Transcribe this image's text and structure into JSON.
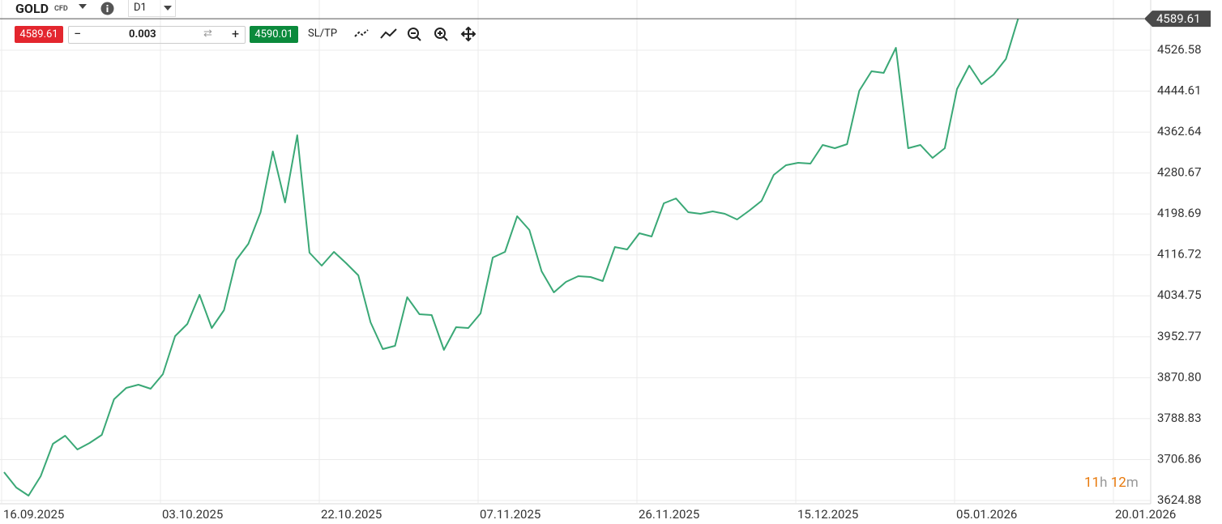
{
  "toolbar": {
    "symbol": "GOLD",
    "symbol_type": "CFD",
    "timeframe": "D1",
    "sell_price": "4589.61",
    "volume": "0.003",
    "buy_price": "4590.01",
    "sltp": "SL/TP"
  },
  "countdown": {
    "hours": "11",
    "hours_unit": "h",
    "minutes": "12",
    "minutes_unit": "m"
  },
  "chart_data": {
    "type": "line",
    "color": "#3aa876",
    "grid": true,
    "last_price": 4589.61,
    "ylim": [
      3618.4,
      4627.1
    ],
    "yticks": [
      3624.88,
      3706.86,
      3788.83,
      {
        "value": 3870.8,
        "label": "3870.80"
      },
      3952.77,
      4034.75,
      4116.72,
      4198.69,
      4280.67,
      4362.64,
      4444.61,
      4526.58
    ],
    "categories": [
      "16.09.2025",
      null,
      null,
      null,
      null,
      null,
      null,
      null,
      null,
      null,
      null,
      null,
      null,
      "03.10.2025",
      null,
      null,
      null,
      null,
      null,
      null,
      null,
      null,
      null,
      null,
      null,
      null,
      "22.10.2025",
      null,
      null,
      null,
      null,
      null,
      null,
      null,
      null,
      null,
      null,
      null,
      null,
      "07.11.2025",
      null,
      null,
      null,
      null,
      null,
      null,
      null,
      null,
      null,
      null,
      null,
      null,
      "26.11.2025",
      null,
      null,
      null,
      null,
      null,
      null,
      null,
      null,
      null,
      null,
      null,
      null,
      "15.12.2025",
      null,
      null,
      null,
      null,
      null,
      null,
      null,
      null,
      null,
      null,
      null,
      null,
      "05.01.2026",
      null,
      null,
      null,
      null,
      null,
      null,
      null,
      null,
      null,
      null,
      null,
      null,
      "20.01.2026"
    ],
    "values": [
      3681.6,
      3650.8,
      3634.6,
      3673.5,
      3738.4,
      3754.6,
      3727.1,
      3740.0,
      3756.2,
      3827.6,
      3850.3,
      3856.8,
      3848.7,
      3877.9,
      3954.1,
      3978.4,
      4036.8,
      3970.3,
      4006.0,
      4106.6,
      4139.0,
      4202.2,
      4323.9,
      4221.7,
      4356.3,
      4121.1,
      4095.2,
      4122.8,
      4100.1,
      4075.7,
      3981.7,
      3928.2,
      3934.6,
      4032.0,
      3997.9,
      3996.3,
      3926.5,
      3971.9,
      3970.3,
      3999.5,
      4111.4,
      4122.8,
      4194.1,
      4166.6,
      4083.8,
      4041.7,
      4062.8,
      4074.1,
      4072.5,
      4064.4,
      4132.5,
      4127.6,
      4160.1,
      4153.6,
      4220.1,
      4229.8,
      4202.2,
      4199.0,
      4203.9,
      4199.0,
      4187.6,
      4205.5,
      4224.9,
      4276.8,
      4296.3,
      4301.2,
      4299.5,
      4336.8,
      4330.4,
      4338.5,
      4445.5,
      4484.4,
      4481.2,
      4531.5,
      4330.4,
      4336.8,
      4310.9,
      4330.4,
      4448.8,
      4495.8,
      4458.5,
      4477.9,
      4508.8,
      4589.61,
      null,
      null,
      null,
      null,
      null,
      null,
      null,
      null
    ]
  }
}
